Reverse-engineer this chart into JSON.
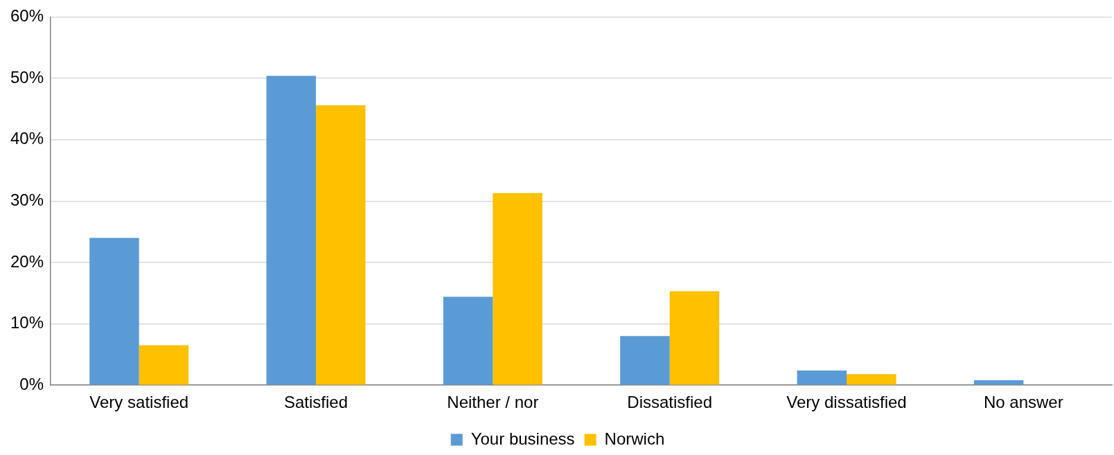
{
  "chart_data": {
    "type": "bar",
    "categories": [
      "Very satisfied",
      "Satisfied",
      "Neither / nor",
      "Dissatisfied",
      "Very dissatisfied",
      "No answer"
    ],
    "series": [
      {
        "name": "Your business",
        "color": "#5b9bd5",
        "values": [
          24,
          50.4,
          14.4,
          8,
          2.4,
          0.8
        ]
      },
      {
        "name": "Norwich",
        "color": "#ffc000",
        "values": [
          6.5,
          45.6,
          31.3,
          15.3,
          1.8,
          0
        ]
      }
    ],
    "ylim": [
      0,
      60
    ],
    "yticks": [
      {
        "value": 0,
        "label": "0%"
      },
      {
        "value": 10,
        "label": "10%"
      },
      {
        "value": 20,
        "label": "20%"
      },
      {
        "value": 30,
        "label": "30%"
      },
      {
        "value": 40,
        "label": "40%"
      },
      {
        "value": 50,
        "label": "50%"
      },
      {
        "value": 60,
        "label": "60%"
      }
    ],
    "grid": "y",
    "legend": "bottom"
  }
}
